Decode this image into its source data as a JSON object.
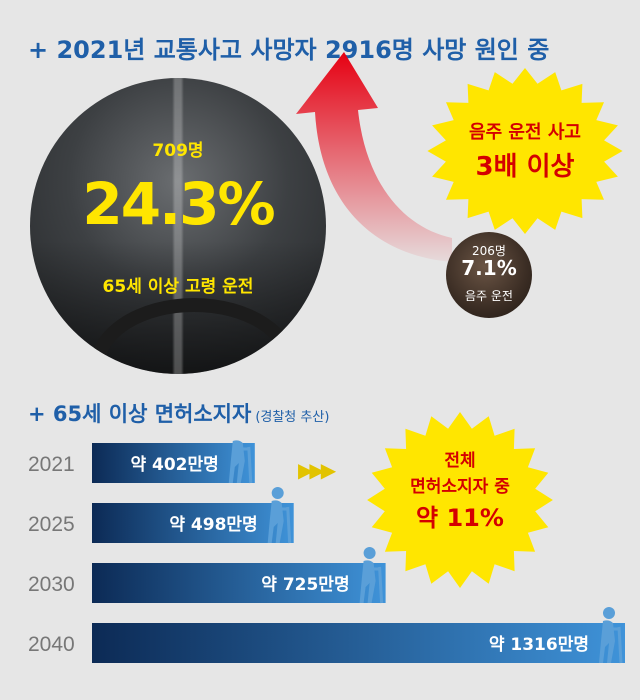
{
  "headings": {
    "top": "+ 2021년 교통사고 사망자 2916명 사망 원인 중",
    "bottom": "+ 65세 이상 면허소지자",
    "bottom_note": "(경찰청 추산)"
  },
  "elderly_circle": {
    "count": "709명",
    "percent": "24.3%",
    "label": "65세 이상 고령 운전"
  },
  "drunk_circle": {
    "count": "206명",
    "percent": "7.1%",
    "label": "음주 운전"
  },
  "callout_top": {
    "line1": "음주 운전 사고",
    "line2": "3배 이상"
  },
  "callout_bottom": {
    "line1": "전체",
    "line2": "면허소지자 중",
    "line3": "약 11%"
  },
  "chevrons": "▶▶▶",
  "colors": {
    "heading": "#1f5fa8",
    "bar_start": "#0c2a55",
    "bar_end": "#3f93d9",
    "highlight": "#ffe600",
    "callout_text": "#d40000",
    "burst": "#ffe600",
    "arrow": "#e60012"
  },
  "icons": [
    "elderly-person-with-cane-icon"
  ],
  "chart_data": {
    "type": "bar",
    "orientation": "horizontal",
    "title": "+ 65세 이상 면허소지자",
    "categories": [
      "2021",
      "2025",
      "2030",
      "2040"
    ],
    "values": [
      402,
      498,
      725,
      1316
    ],
    "unit": "만명",
    "value_labels": [
      "약 402만명",
      "약 498만명",
      "약 725만명",
      "약 1316만명"
    ],
    "xlim": [
      0,
      1316
    ]
  }
}
